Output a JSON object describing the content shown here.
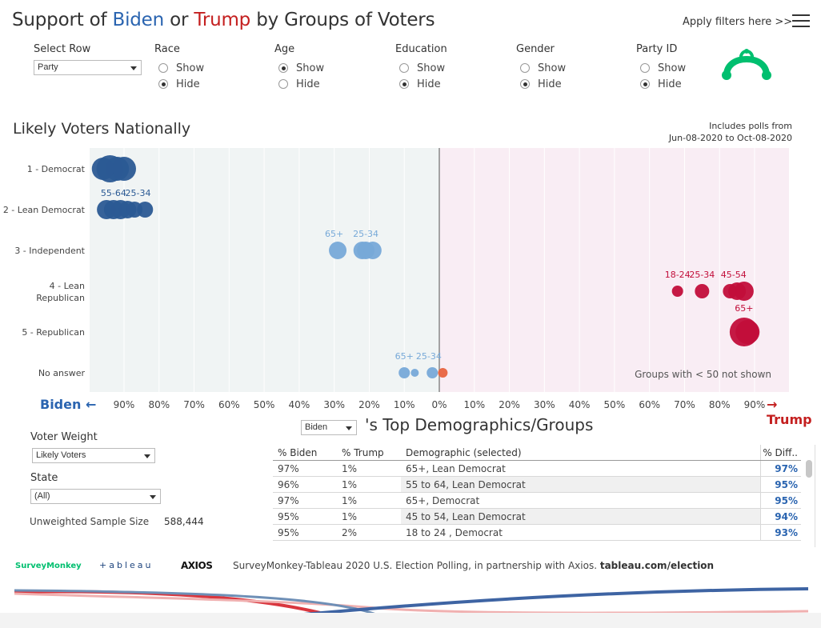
{
  "header": {
    "title_prefix": "Support of ",
    "title_biden": "Biden",
    "title_or": " or ",
    "title_trump": "Trump",
    "title_suffix": " by Groups of Voters",
    "apply_filters": "Apply filters here >>"
  },
  "filters": {
    "select_row": {
      "label": "Select Row",
      "value": "Party"
    },
    "groups": [
      {
        "label": "Race",
        "show": "Show",
        "hide": "Hide",
        "selected": "hide"
      },
      {
        "label": "Age",
        "show": "Show",
        "hide": "Hide",
        "selected": "show"
      },
      {
        "label": "Education",
        "show": "Show",
        "hide": "Hide",
        "selected": "hide"
      },
      {
        "label": "Gender",
        "show": "Show",
        "hide": "Hide",
        "selected": "hide"
      },
      {
        "label": "Party ID",
        "show": "Show",
        "hide": "Hide",
        "selected": "hide"
      }
    ]
  },
  "section": {
    "title": "Likely Voters Nationally",
    "poll_note_1": "Includes polls from",
    "poll_note_2": "Jun-08-2020 to Oct-08-2020"
  },
  "colors": {
    "biden_dark": "#2b5a94",
    "biden_light": "#77a9d8",
    "trump": "#c20e3a",
    "trump_light": "#e8643f",
    "biden_bg": "#f0f4f4",
    "trump_bg": "#f9edf4"
  },
  "chart_data": {
    "type": "scatter",
    "axis_labels_left": [
      "90%",
      "80%",
      "70%",
      "60%",
      "50%",
      "40%",
      "30%",
      "20%",
      "10%",
      "0%"
    ],
    "axis_labels_right": [
      "10%",
      "20%",
      "30%",
      "40%",
      "50%",
      "60%",
      "70%",
      "80%",
      "90%"
    ],
    "x_min": -100,
    "x_max": 100,
    "rows": [
      "1 - Democrat",
      "2 - Lean Democrat",
      "3 - Independent",
      "4 - Lean Republican",
      "5 - Republican",
      "No answer"
    ],
    "points": [
      {
        "row": 0,
        "x": -94,
        "size": 17,
        "side": "biden_dark"
      },
      {
        "row": 0,
        "x": -92,
        "size": 15,
        "side": "biden_dark"
      },
      {
        "row": 0,
        "x": -90,
        "size": 15,
        "side": "biden_dark"
      },
      {
        "row": 0,
        "x": -96,
        "size": 14,
        "side": "biden_dark"
      },
      {
        "row": 1,
        "x": -95,
        "size": 12,
        "side": "biden_dark"
      },
      {
        "row": 1,
        "x": -93,
        "size": 12,
        "side": "biden_dark"
      },
      {
        "row": 1,
        "x": -91,
        "size": 12,
        "side": "biden_dark"
      },
      {
        "row": 1,
        "x": -89,
        "size": 11,
        "side": "biden_dark"
      },
      {
        "row": 1,
        "x": -87,
        "size": 10,
        "side": "biden_dark"
      },
      {
        "row": 1,
        "x": -84,
        "size": 10,
        "side": "biden_dark"
      },
      {
        "row": 2,
        "x": -29,
        "size": 11,
        "side": "biden_light"
      },
      {
        "row": 2,
        "x": -22,
        "size": 11,
        "side": "biden_light"
      },
      {
        "row": 2,
        "x": -21,
        "size": 11,
        "side": "biden_light"
      },
      {
        "row": 2,
        "x": -19,
        "size": 11,
        "side": "biden_light"
      },
      {
        "row": 3,
        "x": 68,
        "size": 7,
        "side": "trump"
      },
      {
        "row": 3,
        "x": 75,
        "size": 9,
        "side": "trump"
      },
      {
        "row": 3,
        "x": 83,
        "size": 9,
        "side": "trump"
      },
      {
        "row": 3,
        "x": 85,
        "size": 11,
        "side": "trump"
      },
      {
        "row": 3,
        "x": 87,
        "size": 12,
        "side": "trump"
      },
      {
        "row": 4,
        "x": 87,
        "size": 18,
        "side": "trump"
      },
      {
        "row": 4,
        "x": 88,
        "size": 15,
        "side": "trump"
      },
      {
        "row": 5,
        "x": -10,
        "size": 7,
        "side": "biden_light"
      },
      {
        "row": 5,
        "x": -7,
        "size": 5,
        "side": "biden_light"
      },
      {
        "row": 5,
        "x": -2,
        "size": 7,
        "side": "biden_light"
      },
      {
        "row": 5,
        "x": 1,
        "size": 6,
        "side": "trump_light"
      }
    ],
    "point_labels": [
      {
        "row": 1,
        "x": -93,
        "text": "55-64",
        "side": "biden_dark"
      },
      {
        "row": 1,
        "x": -86,
        "text": "25-34",
        "side": "biden_dark"
      },
      {
        "row": 2,
        "x": -30,
        "text": "65+",
        "side": "biden_light"
      },
      {
        "row": 2,
        "x": -21,
        "text": "25-34",
        "side": "biden_light"
      },
      {
        "row": 3,
        "x": 68,
        "text": "18-24",
        "side": "trump"
      },
      {
        "row": 3,
        "x": 75,
        "text": "25-34",
        "side": "trump"
      },
      {
        "row": 3,
        "x": 84,
        "text": "45-54",
        "side": "trump"
      },
      {
        "row": 4,
        "x": 87,
        "text": "65+",
        "side": "trump"
      },
      {
        "row": 5,
        "x": -10,
        "text": "65+",
        "side": "biden_light"
      },
      {
        "row": 5,
        "x": -3,
        "text": "25-34",
        "side": "biden_light"
      }
    ],
    "note": "Groups with  < 50 not shown"
  },
  "axis": {
    "biden_arrow": "Biden ←",
    "trump_arrow": "→ Trump"
  },
  "top_demographics": {
    "candidate_select": "Biden",
    "title": "'s Top Demographics/Groups",
    "columns": [
      "% Biden",
      "% Trump",
      "Demographic (selected)",
      "% Diff.."
    ],
    "rows": [
      {
        "biden": "97%",
        "trump": "1%",
        "demo": "65+, Lean Democrat",
        "diff": "97%"
      },
      {
        "biden": "96%",
        "trump": "1%",
        "demo": "55 to 64, Lean Democrat",
        "diff": "95%"
      },
      {
        "biden": "97%",
        "trump": "1%",
        "demo": "65+, Democrat",
        "diff": "95%"
      },
      {
        "biden": "95%",
        "trump": "1%",
        "demo": "45 to 54, Lean Democrat",
        "diff": "94%"
      },
      {
        "biden": "95%",
        "trump": "2%",
        "demo": "18 to 24 , Democrat",
        "diff": "93%"
      }
    ]
  },
  "sidebar": {
    "voter_weight_label": "Voter Weight",
    "voter_weight_value": "Likely Voters",
    "state_label": "State",
    "state_value": "(All)",
    "sample_label": "Unweighted Sample Size",
    "sample_value": "588,444"
  },
  "footer": {
    "surveymonkey": "SurveyMonkey",
    "tableau": "+ableau",
    "axios": "AXIOS",
    "text": "SurveyMonkey-Tableau 2020 U.S. Election Polling, in partnership with Axios. ",
    "link": "tableau.com/election"
  }
}
